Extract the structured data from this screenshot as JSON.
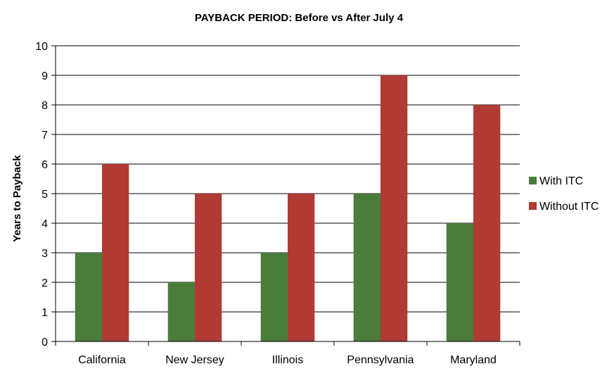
{
  "chart_data": {
    "type": "bar",
    "title": "PAYBACK PERIOD: Before vs After July 4",
    "xlabel": "",
    "ylabel": "Years to Payback",
    "ylim": [
      0,
      10
    ],
    "yticks": [
      0,
      1,
      2,
      3,
      4,
      5,
      6,
      7,
      8,
      9,
      10
    ],
    "grid": true,
    "legend_position": "right",
    "categories": [
      "California",
      "New Jersey",
      "Illinois",
      "Pennsylvania",
      "Maryland"
    ],
    "series": [
      {
        "name": "With ITC",
        "color": "#4a7c3c",
        "values": [
          3,
          2,
          3,
          5,
          4
        ]
      },
      {
        "name": "Without ITC",
        "color": "#b03a34",
        "values": [
          6,
          5,
          5,
          9,
          8
        ]
      }
    ]
  }
}
